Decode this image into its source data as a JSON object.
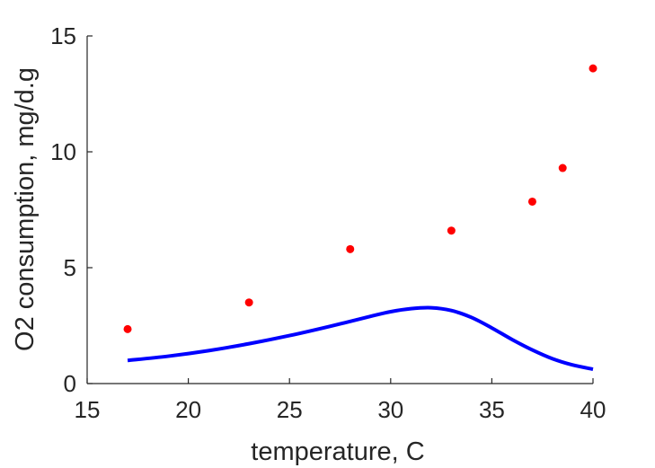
{
  "chart_data": {
    "type": "scatter",
    "xlabel": "temperature, C",
    "ylabel": "O2 consumption, mg/d.g",
    "xlim": [
      15,
      40
    ],
    "ylim": [
      0,
      15
    ],
    "xticks": [
      15,
      20,
      25,
      30,
      35,
      40
    ],
    "yticks": [
      0,
      5,
      10,
      15
    ],
    "grid": false,
    "series": [
      {
        "type": "scatter",
        "color": "#ff0000",
        "x": [
          17,
          23,
          28,
          33,
          37,
          38.5,
          40
        ],
        "y": [
          2.35,
          3.5,
          5.8,
          6.6,
          7.85,
          9.3,
          13.6
        ]
      },
      {
        "type": "line",
        "color": "#0000ff",
        "x": [
          17,
          19,
          21,
          23,
          25,
          27,
          29,
          30,
          31,
          32,
          33,
          34,
          35,
          36,
          37,
          38,
          39,
          40
        ],
        "y": [
          1.0,
          1.18,
          1.42,
          1.72,
          2.07,
          2.47,
          2.9,
          3.1,
          3.23,
          3.27,
          3.15,
          2.85,
          2.4,
          1.9,
          1.45,
          1.07,
          0.8,
          0.62
        ]
      }
    ]
  }
}
